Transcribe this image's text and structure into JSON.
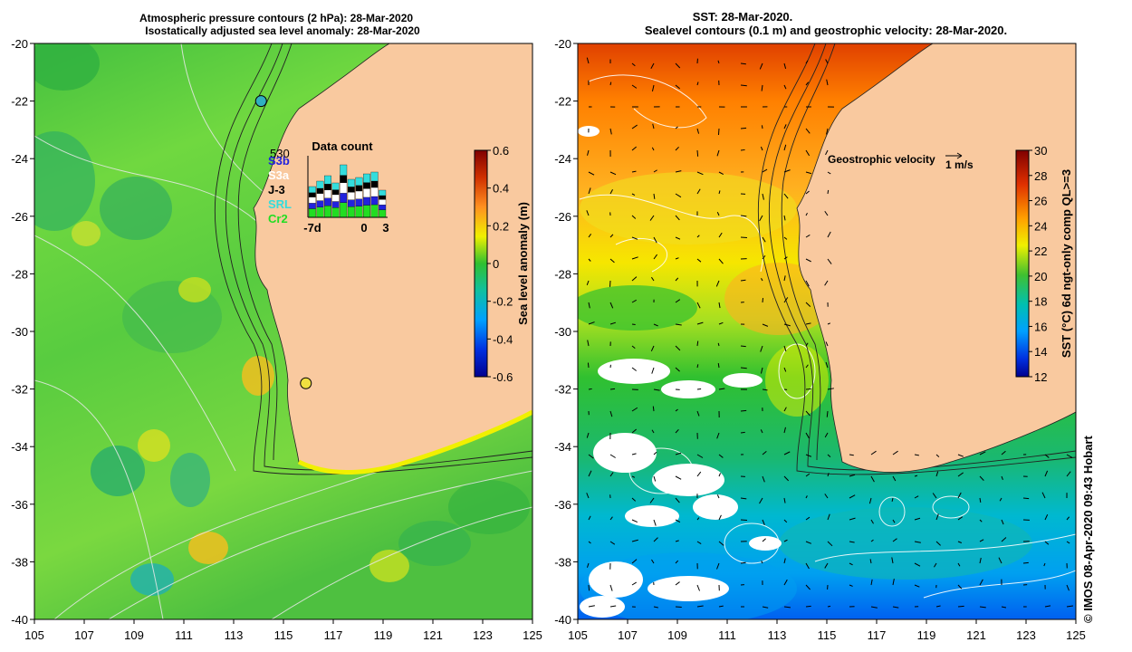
{
  "left_panel": {
    "title_line1": "Atmospheric pressure contours (2 hPa): 28-Mar-2020",
    "title_line2": "Isostatically adjusted sea level anomaly: 28-Mar-2020",
    "colorbar": {
      "label": "Sea level anomaly (m)",
      "ticks": [
        "0.6",
        "0.4",
        "0.2",
        "0",
        "-0.2",
        "-0.4",
        "-0.6"
      ]
    },
    "data_count": {
      "title": "Data count",
      "max_label": "530",
      "legend": [
        {
          "name": "S3b",
          "color": "#2222dd"
        },
        {
          "name": "S3a",
          "color": "#ffffff"
        },
        {
          "name": "J-3",
          "color": "#000000"
        },
        {
          "name": "SRL",
          "color": "#33dddd"
        },
        {
          "name": "Cr2",
          "color": "#22dd22"
        }
      ],
      "x_labels": [
        "-7d",
        "0",
        "3"
      ]
    }
  },
  "right_panel": {
    "title_line1": "SST: 28-Mar-2020.",
    "title_line2": "Sealevel contours (0.1 m) and geostrophic velocity: 28-Mar-2020.",
    "velocity_label": "Geostrophic velocity",
    "velocity_scale": "1 m/s",
    "colorbar": {
      "label": "SST (°C) 6d ngt-only comp QL>=3",
      "ticks": [
        "30",
        "28",
        "26",
        "24",
        "22",
        "20",
        "18",
        "16",
        "14",
        "12"
      ]
    }
  },
  "axes": {
    "lat_labels": [
      "-20",
      "-22",
      "-24",
      "-26",
      "-28",
      "-30",
      "-32",
      "-34",
      "-36",
      "-38",
      "-40"
    ],
    "lon_labels": [
      "105",
      "107",
      "109",
      "111",
      "113",
      "115",
      "117",
      "119",
      "121",
      "123",
      "125"
    ]
  },
  "markers": [
    {
      "name": "tide-gauge-north",
      "lon": 114.1,
      "lat": -22.0
    },
    {
      "name": "tide-gauge-fremantle",
      "lon": 115.9,
      "lat": -31.8
    }
  ],
  "credit": "© IMOS 08-Apr-2020 09:43 Hobart",
  "colors": {
    "land": "#f9c99f",
    "sla_colormap": [
      "#00008f",
      "#0050ff",
      "#00c0ff",
      "#10d080",
      "#30c030",
      "#80e040",
      "#f0f000",
      "#ffa020",
      "#d04000",
      "#800000"
    ],
    "sst_colormap": [
      "#00008f",
      "#0040ff",
      "#00a0ff",
      "#00d0c0",
      "#20c040",
      "#80e020",
      "#f0f000",
      "#ffb000",
      "#ff7000",
      "#d02000",
      "#800000"
    ]
  }
}
